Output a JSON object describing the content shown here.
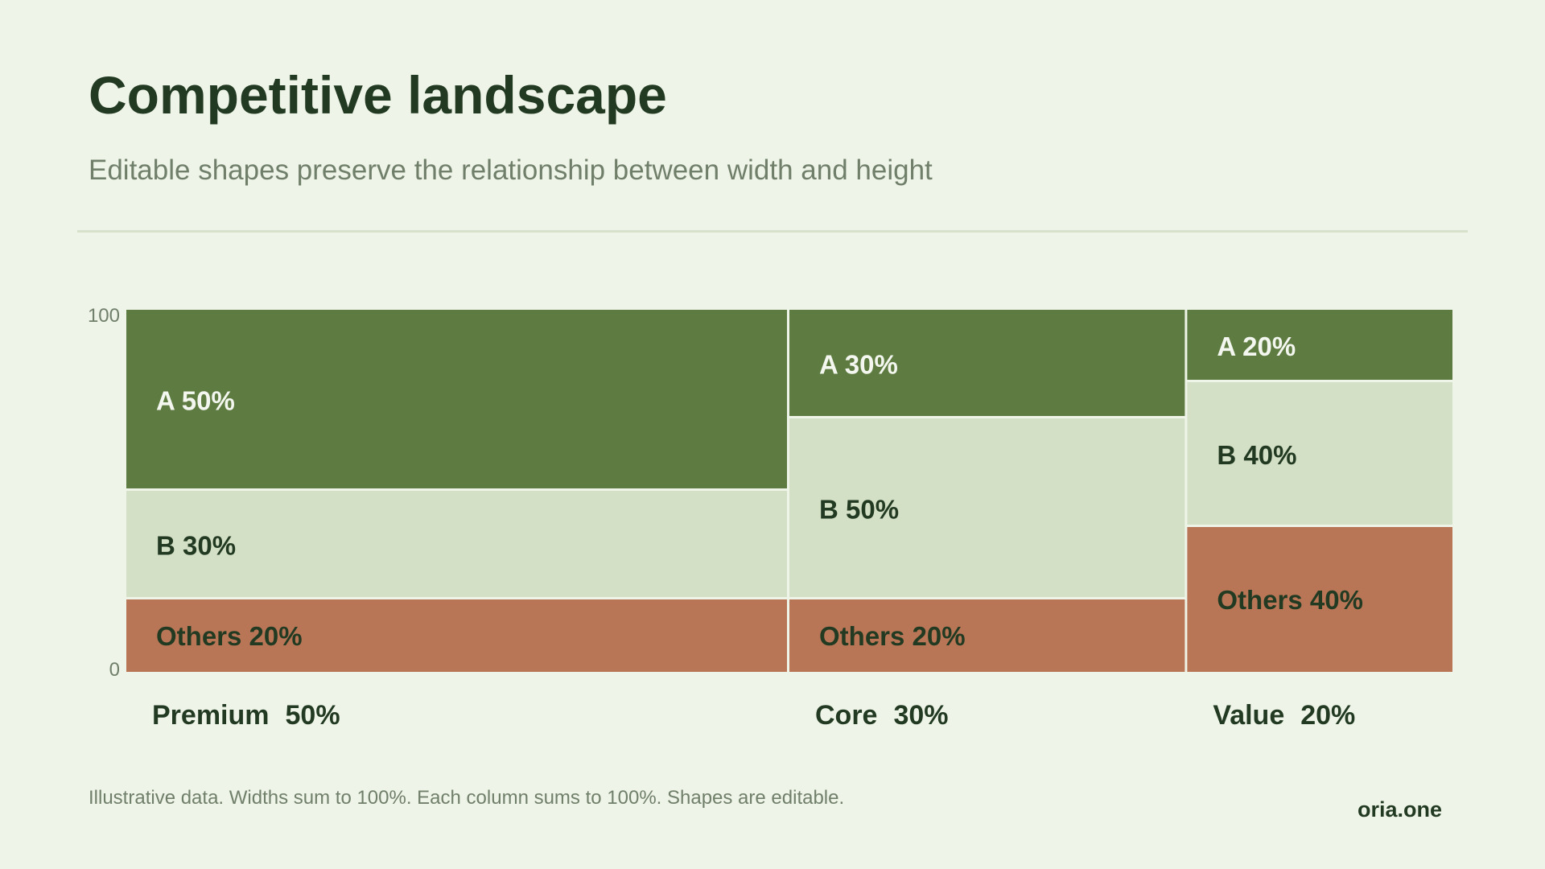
{
  "header": {
    "title": "Competitive landscape",
    "subtitle": "Editable shapes preserve the relationship between width and height"
  },
  "footer": {
    "note": "Illustrative data. Widths sum to 100%. Each column sums to 100%. Shapes are editable.",
    "brand": "oria.one"
  },
  "colors": {
    "background": "#eff4e8",
    "text_dark": "#223a22",
    "text_muted": "#707f6a",
    "A": "#5e7c41",
    "B": "#d4e0c6",
    "Others": "#b87657",
    "segment_border": "#eff4e8"
  },
  "chart_data": {
    "type": "mosaic",
    "y_axis": {
      "min": 0,
      "max": 100,
      "tick_labels": [
        "100",
        "0"
      ]
    },
    "grid": false,
    "legend": "none",
    "columns": [
      {
        "name": "Premium",
        "width_label": "50%",
        "width": 50,
        "segments": [
          {
            "name": "A",
            "value": 50,
            "label": "A 50%"
          },
          {
            "name": "B",
            "value": 30,
            "label": "B 30%"
          },
          {
            "name": "Others",
            "value": 20,
            "label": "Others 20%"
          }
        ]
      },
      {
        "name": "Core",
        "width_label": "30%",
        "width": 30,
        "segments": [
          {
            "name": "A",
            "value": 30,
            "label": "A 30%"
          },
          {
            "name": "B",
            "value": 50,
            "label": "B 50%"
          },
          {
            "name": "Others",
            "value": 20,
            "label": "Others 20%"
          }
        ]
      },
      {
        "name": "Value",
        "width_label": "20%",
        "width": 20,
        "segments": [
          {
            "name": "A",
            "value": 20,
            "label": "A 20%"
          },
          {
            "name": "B",
            "value": 40,
            "label": "B 40%"
          },
          {
            "name": "Others",
            "value": 40,
            "label": "Others 40%"
          }
        ]
      }
    ]
  }
}
